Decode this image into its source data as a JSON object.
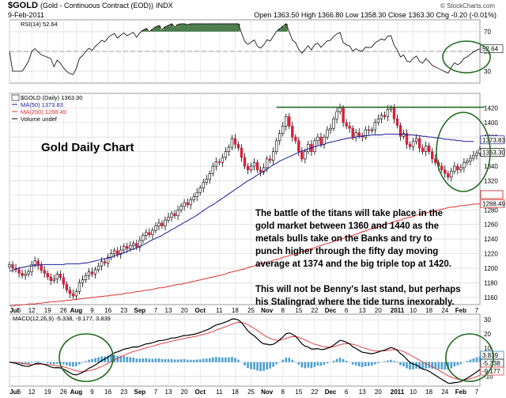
{
  "header": {
    "symbol": "$GOLD",
    "description": "(Gold - Continuous Contract (EOD))",
    "exchange": "INDX",
    "date": "9-Feb-2011",
    "quote": "Open 1363.50  High 1366.80  Low 1358.30  Close 1363.30  Chg -0.20 (-0.01%)",
    "watermark": "© StockCharts.com"
  },
  "chart_data": [
    {
      "type": "line",
      "panel": "rsi",
      "legend": [
        "RSI(14) 52.64"
      ],
      "y_ticks": [
        "70",
        "50",
        "30"
      ],
      "last_value_label": "52.64",
      "ylim": [
        18,
        82
      ]
    },
    {
      "type": "candlestick",
      "panel": "price",
      "title": "Gold Daily Chart",
      "legend": [
        "$GOLD (Daily) 1363.30",
        "MA(50) 1373.83",
        "MA(200) 1288.49",
        "Volume undef"
      ],
      "y_ticks": [
        "1420",
        "1400",
        "1380",
        "1360",
        "1340",
        "1320",
        "1300",
        "1280",
        "1260",
        "1240",
        "1220",
        "1200",
        "1180",
        "1160"
      ],
      "ylim": [
        1150,
        1440
      ],
      "x_labels": [
        "Jul",
        "6",
        "12",
        "19",
        "26",
        "Aug",
        "9",
        "16",
        "23",
        "Sep",
        "7",
        "13",
        "20",
        "Oct",
        "11",
        "18",
        "25",
        "Nov",
        "8",
        "15",
        "22",
        "Dec",
        "6",
        "13",
        "20",
        "2011",
        "10",
        "18",
        "24",
        "Feb",
        "7"
      ],
      "x_label_index": [
        0,
        3,
        7,
        12,
        17,
        21,
        26,
        31,
        36,
        41,
        46,
        50,
        55,
        60,
        66,
        71,
        76,
        81,
        86,
        91,
        96,
        101,
        106,
        111,
        116,
        122,
        127,
        132,
        137,
        142,
        147
      ],
      "series": [
        {
          "name": "MA(50)",
          "color": "#1a1a9a",
          "values": [
            1196,
            1197,
            1199,
            1200,
            1201,
            1202,
            1203,
            1203,
            1204,
            1204,
            1205,
            1205,
            1205,
            1205,
            1205,
            1205,
            1205,
            1205,
            1206,
            1206,
            1206,
            1206,
            1206,
            1207,
            1207,
            1208,
            1209,
            1210,
            1211,
            1212,
            1213,
            1214,
            1215,
            1217,
            1218,
            1220,
            1221,
            1223,
            1225,
            1226,
            1228,
            1230,
            1232,
            1234,
            1237,
            1239,
            1241,
            1243,
            1245,
            1248,
            1250,
            1253,
            1255,
            1258,
            1260,
            1263,
            1265,
            1268,
            1270,
            1273,
            1276,
            1279,
            1282,
            1285,
            1287,
            1290,
            1293,
            1296,
            1299,
            1302,
            1305,
            1308,
            1311,
            1314,
            1317,
            1320,
            1322,
            1325,
            1328,
            1331,
            1333,
            1336,
            1339,
            1342,
            1344,
            1347,
            1349,
            1351,
            1353,
            1355,
            1357,
            1359,
            1361,
            1362,
            1364,
            1365,
            1367,
            1368,
            1369,
            1370,
            1372,
            1373,
            1374,
            1375,
            1376,
            1377,
            1378,
            1379,
            1379,
            1380,
            1381,
            1381,
            1382,
            1382,
            1383,
            1383,
            1383,
            1383,
            1384,
            1384,
            1384,
            1384,
            1384,
            1384,
            1384,
            1383,
            1383,
            1383,
            1382,
            1382,
            1381,
            1381,
            1380,
            1380,
            1379,
            1379,
            1378,
            1377,
            1377,
            1376,
            1376,
            1375,
            1375,
            1374,
            1374,
            1374,
            1374
          ]
        },
        {
          "name": "MA(200)",
          "color": "#e03030",
          "values": [
            1148,
            1148,
            1149,
            1149,
            1150,
            1150,
            1151,
            1151,
            1151,
            1152,
            1152,
            1153,
            1153,
            1154,
            1154,
            1154,
            1155,
            1155,
            1156,
            1156,
            1157,
            1157,
            1158,
            1158,
            1159,
            1159,
            1160,
            1160,
            1161,
            1161,
            1162,
            1162,
            1163,
            1163,
            1164,
            1164,
            1165,
            1166,
            1166,
            1167,
            1168,
            1168,
            1169,
            1170,
            1170,
            1171,
            1172,
            1173,
            1173,
            1174,
            1175,
            1176,
            1177,
            1178,
            1178,
            1179,
            1180,
            1181,
            1182,
            1183,
            1184,
            1185,
            1186,
            1187,
            1188,
            1189,
            1190,
            1191,
            1192,
            1194,
            1195,
            1196,
            1197,
            1198,
            1199,
            1201,
            1202,
            1203,
            1204,
            1206,
            1207,
            1208,
            1209,
            1211,
            1212,
            1213,
            1215,
            1216,
            1217,
            1219,
            1220,
            1221,
            1223,
            1224,
            1226,
            1227,
            1228,
            1230,
            1231,
            1233,
            1234,
            1235,
            1237,
            1238,
            1240,
            1241,
            1243,
            1244,
            1245,
            1247,
            1248,
            1250,
            1251,
            1253,
            1254,
            1255,
            1257,
            1258,
            1260,
            1261,
            1262,
            1264,
            1265,
            1266,
            1268,
            1269,
            1270,
            1271,
            1273,
            1274,
            1275,
            1276,
            1277,
            1278,
            1279,
            1280,
            1281,
            1282,
            1283,
            1284,
            1284,
            1285,
            1286,
            1286,
            1287,
            1287,
            1288,
            1288,
            1288
          ]
        }
      ],
      "close": [
        1205,
        1200,
        1198,
        1193,
        1190,
        1192,
        1195,
        1205,
        1210,
        1204,
        1197,
        1193,
        1188,
        1183,
        1185,
        1192,
        1187,
        1178,
        1170,
        1165,
        1162,
        1168,
        1180,
        1184,
        1190,
        1195,
        1192,
        1198,
        1203,
        1209,
        1207,
        1215,
        1220,
        1224,
        1219,
        1225,
        1230,
        1227,
        1231,
        1234,
        1229,
        1238,
        1245,
        1249,
        1246,
        1252,
        1258,
        1262,
        1258,
        1266,
        1270,
        1275,
        1272,
        1280,
        1285,
        1290,
        1287,
        1294,
        1298,
        1304,
        1310,
        1318,
        1322,
        1330,
        1340,
        1346,
        1345,
        1352,
        1360,
        1366,
        1378,
        1370,
        1365,
        1352,
        1340,
        1335,
        1340,
        1345,
        1335,
        1332,
        1338,
        1350,
        1348,
        1360,
        1375,
        1385,
        1395,
        1408,
        1395,
        1380,
        1375,
        1360,
        1350,
        1360,
        1370,
        1360,
        1375,
        1380,
        1370,
        1380,
        1390,
        1392,
        1405,
        1415,
        1420,
        1400,
        1395,
        1392,
        1380,
        1386,
        1382,
        1380,
        1390,
        1389,
        1390,
        1400,
        1405,
        1410,
        1408,
        1418,
        1420,
        1405,
        1396,
        1381,
        1385,
        1370,
        1367,
        1374,
        1378,
        1365,
        1360,
        1368,
        1360,
        1350,
        1345,
        1340,
        1335,
        1330,
        1325,
        1333,
        1340,
        1335,
        1338,
        1345,
        1347,
        1351,
        1355,
        1358,
        1363
      ],
      "levels": [
        {
          "value": 1421,
          "color": "#1f6b1f",
          "from_index": 84,
          "to_index": 150
        },
        {
          "value": 1301,
          "color": "#c01818",
          "label": "1300"
        }
      ],
      "value_tags": [
        {
          "label": "1373.83",
          "value": 1374
        },
        {
          "label": "1363.30",
          "value": 1363.3
        },
        {
          "label": "1288.49",
          "value": 1288.5
        }
      ],
      "annotation": [
        "The battle of the titans will take place in the",
        "gold market between 1360 and 1440 as the",
        "metals bulls take on the Banks and try to",
        "punch higher through the fifty day moving",
        "average at 1374 and the big triple top at 1420.",
        "",
        "This will not be Benny's last stand, but perhaps",
        "his Stalingrad where the tide turns inexorably."
      ]
    },
    {
      "type": "line",
      "panel": "macd",
      "legend": [
        "MACD(12,26,9) -5.338, -9.177, 3.839"
      ],
      "y_ticks": [
        "30",
        "20",
        "10",
        "0",
        "-10"
      ],
      "ylim": [
        -17,
        34
      ],
      "value_tags": [
        {
          "label": "3.839",
          "value": 3.8
        },
        {
          "label": "-5.338",
          "value": -5.3
        },
        {
          "label": "-9.177",
          "value": -9.2
        }
      ]
    }
  ]
}
